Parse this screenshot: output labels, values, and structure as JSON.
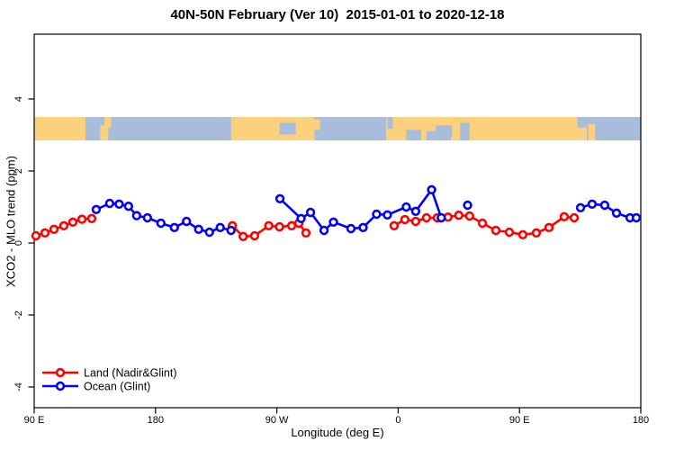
{
  "title": "40N-50N February (Ver 10)  2015-01-01 to 2020-12-18",
  "axes": {
    "x_label": "Longitude (deg E)",
    "y_label": "XCO2 - MLO trend (ppm)",
    "x_ticks": [
      {
        "value": 90,
        "label": "90 E"
      },
      {
        "value": 180,
        "label": "180"
      },
      {
        "value": 270,
        "label": "90 W"
      },
      {
        "value": 360,
        "label": "0"
      },
      {
        "value": 450,
        "label": "90 E"
      },
      {
        "value": 540,
        "label": "180"
      }
    ],
    "y_ticks": [
      {
        "value": -4,
        "label": "-4"
      },
      {
        "value": -2,
        "label": "-2"
      },
      {
        "value": 0,
        "label": "0"
      },
      {
        "value": 2,
        "label": "2"
      },
      {
        "value": 4,
        "label": "4"
      }
    ],
    "x_range_axis_deg": [
      90,
      540
    ],
    "y_range_ppm": [
      -4.6,
      5.8
    ]
  },
  "colors": {
    "land_series": "#ff0000",
    "ocean_series": "#0000ff",
    "map_land": "#fbd17d",
    "map_ocean": "#a7bddb",
    "axis": "#000000"
  },
  "map_band": {
    "meaning": "land/ocean map strip of the 40N-50N latitude belt",
    "top_ppm": 3.5,
    "bottom_ppm": 2.85,
    "land_segments": [
      [
        90,
        128
      ],
      [
        236,
        298
      ],
      [
        351,
        500
      ]
    ],
    "land_details": [
      [
        139,
        145,
        0.35,
        1
      ],
      [
        142,
        147,
        0,
        0.45
      ],
      [
        298,
        302,
        0.1,
        0.55
      ],
      [
        501,
        506,
        0.3,
        1
      ]
    ],
    "ocean_details": [
      [
        272,
        284,
        0.25,
        0.75
      ],
      [
        388,
        400,
        0.35,
        0.85
      ],
      [
        406,
        413,
        0.25,
        1
      ],
      [
        366,
        377,
        0.55,
        1
      ],
      [
        381,
        399,
        0.6,
        1
      ],
      [
        352,
        356,
        0,
        0.5
      ],
      [
        493,
        500,
        0,
        0.45
      ]
    ]
  },
  "legend": {
    "items": [
      {
        "label": "Land (Nadir&Glint)",
        "color": "#ff0000"
      },
      {
        "label": "Ocean (Glint)",
        "color": "#0000ff"
      }
    ]
  },
  "chart_data": {
    "type": "line",
    "title": "40N-50N February (Ver 10)  2015-01-01 to 2020-12-18",
    "xlabel": "Longitude (deg E)",
    "ylabel": "XCO2 - MLO trend (ppm)",
    "x_axis_note": "axis runs 90E eastward through 180, 90W, 0, 90E to 180 (axis coord 90..540)",
    "xlim": [
      90,
      540
    ],
    "ylim": [
      -4.6,
      5.8
    ],
    "grid": false,
    "legend_position": "bottom-left",
    "series": [
      {
        "name": "Land (Nadir&Glint)",
        "color": "#ff0000",
        "marker": "open-circle",
        "segments": [
          [
            [
              91.3,
              0.2
            ],
            [
              98,
              0.28
            ],
            [
              104.7,
              0.38
            ],
            [
              112,
              0.48
            ],
            [
              118.7,
              0.58
            ],
            [
              125.4,
              0.66
            ],
            [
              132.7,
              0.68
            ]
          ],
          [
            [
              237,
              0.48
            ],
            [
              245,
              0.18
            ],
            [
              253.5,
              0.2
            ],
            [
              264,
              0.48
            ],
            [
              272,
              0.45
            ],
            [
              281,
              0.48
            ],
            [
              286.3,
              0.55
            ],
            [
              291.6,
              0.28
            ]
          ],
          [
            [
              357,
              0.48
            ],
            [
              365,
              0.65
            ],
            [
              373,
              0.6
            ],
            [
              381,
              0.7
            ],
            [
              389,
              0.7
            ],
            [
              397,
              0.72
            ],
            [
              405,
              0.77
            ],
            [
              413,
              0.75
            ],
            [
              422.5,
              0.55
            ],
            [
              432.5,
              0.35
            ],
            [
              442.5,
              0.3
            ],
            [
              452.5,
              0.23
            ],
            [
              462.5,
              0.28
            ],
            [
              471.9,
              0.43
            ],
            [
              483.2,
              0.73
            ],
            [
              490.6,
              0.7
            ]
          ]
        ]
      },
      {
        "name": "Ocean (Glint)",
        "color": "#0000ff",
        "marker": "open-circle",
        "segments": [
          [
            [
              136,
              0.93
            ],
            [
              146,
              1.1
            ],
            [
              153,
              1.08
            ],
            [
              160,
              1.02
            ],
            [
              166,
              0.76
            ],
            [
              174,
              0.7
            ],
            [
              184,
              0.55
            ],
            [
              194,
              0.43
            ],
            [
              203,
              0.6
            ],
            [
              212,
              0.38
            ],
            [
              220,
              0.3
            ],
            [
              228,
              0.43
            ],
            [
              236,
              0.35
            ]
          ],
          [
            [
              272.3,
              1.23
            ],
            [
              288,
              0.68
            ],
            [
              295,
              0.85
            ],
            [
              305,
              0.35
            ],
            [
              312,
              0.58
            ],
            [
              325,
              0.4
            ],
            [
              334,
              0.43
            ],
            [
              344,
              0.8
            ],
            [
              352,
              0.78
            ],
            [
              366,
              1.0
            ],
            [
              373,
              0.88
            ],
            [
              384.8,
              1.48
            ],
            [
              392,
              0.7
            ]
          ],
          [
            [
              411.5,
              1.05
            ]
          ],
          [
            [
              495.3,
              0.98
            ],
            [
              503.9,
              1.08
            ],
            [
              513.2,
              1.05
            ],
            [
              522,
              0.83
            ],
            [
              532,
              0.7
            ],
            [
              536.7,
              0.7
            ]
          ]
        ]
      }
    ]
  }
}
